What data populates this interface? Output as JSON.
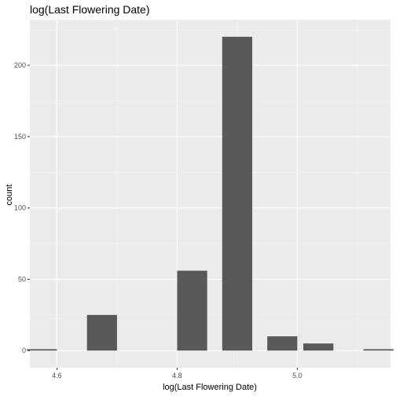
{
  "chart_data": {
    "type": "bar",
    "title": "log(Last Flowering Date)",
    "xlabel": "log(Last Flowering Date)",
    "ylabel": "count",
    "bins": [
      {
        "x": 4.575,
        "count": 1
      },
      {
        "x": 4.675,
        "count": 25
      },
      {
        "x": 4.775,
        "count": 0
      },
      {
        "x": 4.825,
        "count": 56
      },
      {
        "x": 4.9,
        "count": 220
      },
      {
        "x": 4.975,
        "count": 10
      },
      {
        "x": 5.035,
        "count": 5
      },
      {
        "x": 5.135,
        "count": 1
      }
    ],
    "bin_width": 0.05,
    "xlim": [
      4.555,
      5.155
    ],
    "ylim": [
      -12,
      232
    ],
    "x_ticks": [
      4.6,
      4.8,
      5.0
    ],
    "x_tick_labels": [
      "4.6",
      "4.8",
      "5.0"
    ],
    "y_ticks": [
      0,
      50,
      100,
      150,
      200
    ],
    "y_tick_labels": [
      "0",
      "50",
      "100",
      "150",
      "200"
    ],
    "grid": true,
    "colors": {
      "panel_background": "#ebebeb",
      "grid_major": "#ffffff",
      "bar_fill": "#595959",
      "tick_text": "#4d4d4d",
      "title_text": "#000000"
    }
  }
}
